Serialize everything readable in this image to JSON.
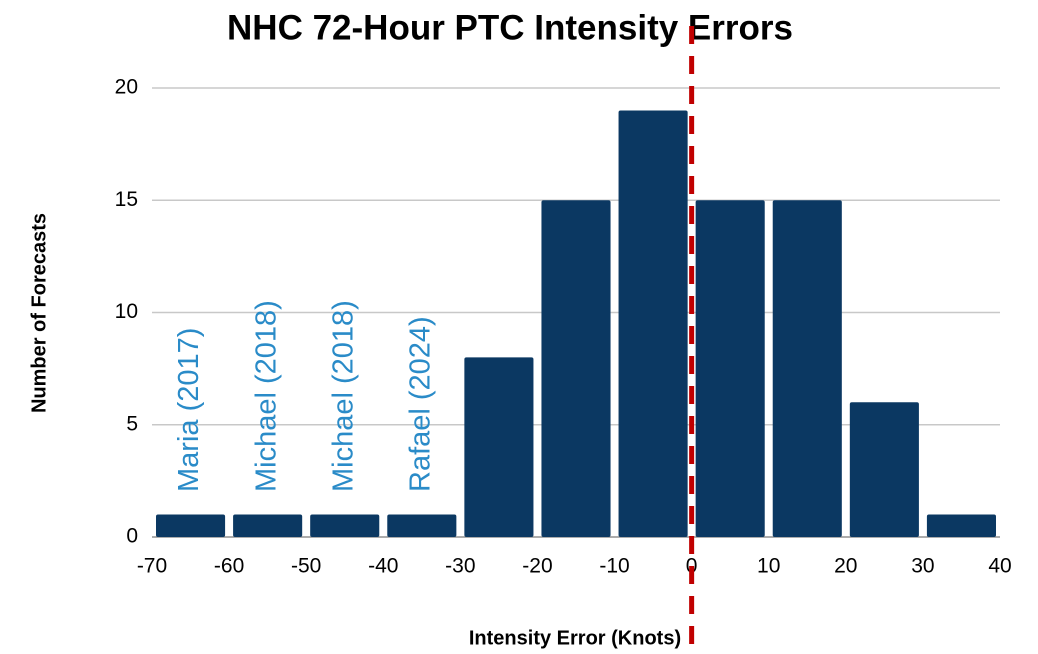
{
  "chart_data": {
    "type": "histogram",
    "title": "NHC 72-Hour PTC Intensity Errors",
    "x_label": "Intensity Error (Knots)",
    "y_label": "Number of Forecasts",
    "bins": [
      -70,
      -60,
      -50,
      -40,
      -30,
      -20,
      -10,
      0,
      10,
      20,
      30,
      40
    ],
    "counts": [
      1,
      1,
      1,
      1,
      8,
      15,
      19,
      15,
      15,
      6,
      1
    ],
    "color": "#0b3862",
    "xlim": [
      -70,
      40
    ],
    "xticks": [
      -70,
      -60,
      -50,
      -40,
      -30,
      -20,
      -10,
      0,
      10,
      20,
      30,
      40
    ],
    "ylim": [
      0,
      20
    ],
    "yticks": [
      0,
      5,
      10,
      15,
      20
    ],
    "grid": true,
    "annotations": [
      "Maria (2017)",
      "Michael (2018)",
      "Michael (2018)",
      "Rafael (2024)"
    ],
    "annotation_color": "#2a8bc8",
    "reference_line": {
      "x": 0,
      "color": "#c00000"
    }
  }
}
